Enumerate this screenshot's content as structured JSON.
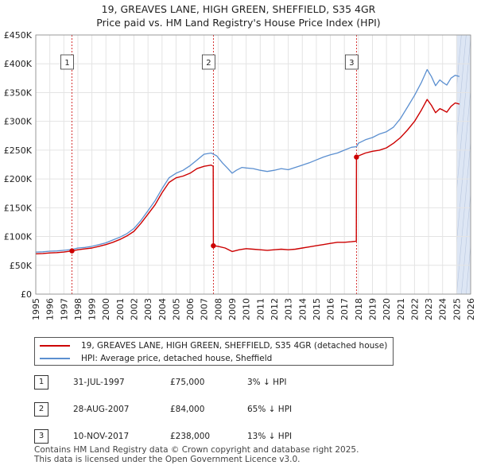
{
  "title_line1": "19, GREAVES LANE, HIGH GREEN, SHEFFIELD, S35 4GR",
  "title_line2": "Price paid vs. HM Land Registry's House Price Index (HPI)",
  "colors": {
    "property": "#cc0000",
    "hpi": "#5b8fd0",
    "marker_line": "#cc0000",
    "shade": "#dde6f4"
  },
  "chart_data": {
    "type": "line",
    "xlim": [
      1995,
      2026
    ],
    "ylim": [
      0,
      450000
    ],
    "y_ticks": [
      0,
      50000,
      100000,
      150000,
      200000,
      250000,
      300000,
      350000,
      400000,
      450000
    ],
    "y_tick_labels": [
      "£0",
      "£50K",
      "£100K",
      "£150K",
      "£200K",
      "£250K",
      "£300K",
      "£350K",
      "£400K",
      "£450K"
    ],
    "x_ticks": [
      1995,
      1996,
      1997,
      1998,
      1999,
      2000,
      2001,
      2002,
      2003,
      2004,
      2005,
      2006,
      2007,
      2008,
      2009,
      2010,
      2011,
      2012,
      2013,
      2014,
      2015,
      2016,
      2017,
      2018,
      2019,
      2020,
      2021,
      2022,
      2023,
      2024,
      2025,
      2026
    ],
    "x_tick_labels": [
      "1995",
      "1996",
      "1997",
      "1998",
      "1999",
      "2000",
      "2001",
      "2002",
      "2003",
      "2004",
      "2005",
      "2006",
      "2007",
      "2008",
      "2009",
      "2010",
      "2011",
      "2012",
      "2013",
      "2014",
      "2015",
      "2016",
      "2017",
      "2018",
      "2019",
      "2020",
      "2021",
      "2022",
      "2023",
      "2024",
      "2025",
      "2026"
    ],
    "grid": true,
    "forecast_from": 2025.0,
    "series": [
      {
        "name": "hpi",
        "x": [
          1995.0,
          1995.5,
          1996.0,
          1996.5,
          1997.0,
          1997.58,
          1998.0,
          1998.5,
          1999.0,
          1999.5,
          2000.0,
          2000.5,
          2001.0,
          2001.5,
          2002.0,
          2002.5,
          2003.0,
          2003.5,
          2004.0,
          2004.5,
          2005.0,
          2005.5,
          2006.0,
          2006.5,
          2007.0,
          2007.5,
          2007.9,
          2008.3,
          2008.7,
          2009.0,
          2009.3,
          2009.7,
          2010.0,
          2010.5,
          2011.0,
          2011.5,
          2012.0,
          2012.5,
          2013.0,
          2013.5,
          2014.0,
          2014.5,
          2015.0,
          2015.5,
          2016.0,
          2016.5,
          2017.0,
          2017.5,
          2017.86,
          2018.0,
          2018.5,
          2019.0,
          2019.5,
          2020.0,
          2020.5,
          2021.0,
          2021.5,
          2022.0,
          2022.5,
          2022.9,
          2023.2,
          2023.5,
          2023.8,
          2024.0,
          2024.3,
          2024.6,
          2024.9,
          2025.2
        ],
        "y": [
          73000,
          73500,
          74500,
          75000,
          76000,
          77500,
          80000,
          81000,
          83000,
          86000,
          89000,
          94000,
          99000,
          105000,
          114000,
          128000,
          145000,
          162000,
          183000,
          202000,
          210000,
          215000,
          223000,
          233000,
          243000,
          245000,
          240000,
          228000,
          218000,
          210000,
          215000,
          220000,
          219000,
          218000,
          215000,
          213000,
          215000,
          218000,
          216000,
          220000,
          224000,
          228000,
          233000,
          238000,
          242000,
          245000,
          250000,
          255000,
          256000,
          262000,
          268000,
          272000,
          278000,
          282000,
          290000,
          305000,
          325000,
          345000,
          368000,
          390000,
          378000,
          362000,
          372000,
          368000,
          363000,
          375000,
          380000,
          378000
        ]
      },
      {
        "name": "property",
        "x": [
          1995.0,
          1995.5,
          1996.0,
          1996.5,
          1997.0,
          1997.58,
          1998.0,
          1998.5,
          1999.0,
          1999.5,
          2000.0,
          2000.5,
          2001.0,
          2001.5,
          2002.0,
          2002.5,
          2003.0,
          2003.5,
          2004.0,
          2004.5,
          2005.0,
          2005.5,
          2006.0,
          2006.5,
          2007.0,
          2007.5,
          2007.65,
          2007.66,
          2008.0,
          2008.5,
          2009.0,
          2009.5,
          2010.0,
          2010.5,
          2011.0,
          2011.5,
          2012.0,
          2012.5,
          2013.0,
          2013.5,
          2014.0,
          2014.5,
          2015.0,
          2015.5,
          2016.0,
          2016.5,
          2017.0,
          2017.5,
          2017.85,
          2017.86,
          2018.0,
          2018.5,
          2019.0,
          2019.5,
          2020.0,
          2020.5,
          2021.0,
          2021.5,
          2022.0,
          2022.5,
          2022.9,
          2023.2,
          2023.5,
          2023.8,
          2024.0,
          2024.3,
          2024.6,
          2024.9,
          2025.2
        ],
        "y": [
          70000,
          70500,
          71500,
          72000,
          73000,
          75000,
          77000,
          78500,
          80000,
          83000,
          86000,
          90000,
          95000,
          101000,
          109000,
          123000,
          139000,
          155000,
          176000,
          194000,
          202000,
          205000,
          210000,
          218000,
          222000,
          224000,
          222000,
          84000,
          83000,
          80000,
          74000,
          77000,
          79000,
          78000,
          77000,
          76000,
          77000,
          78000,
          77000,
          78000,
          80000,
          82000,
          84000,
          86000,
          88000,
          90000,
          90000,
          91000,
          92000,
          238000,
          240000,
          245000,
          248000,
          250000,
          254000,
          262000,
          272000,
          285000,
          300000,
          320000,
          338000,
          328000,
          315000,
          322000,
          320000,
          316000,
          326000,
          332000,
          330000
        ]
      }
    ],
    "sale_points": [
      {
        "label": "1",
        "x": 1997.58,
        "y": 75000
      },
      {
        "label": "2",
        "x": 2007.66,
        "y": 84000
      },
      {
        "label": "3",
        "x": 2017.86,
        "y": 238000
      }
    ]
  },
  "legend": {
    "property_label": "19, GREAVES LANE, HIGH GREEN, SHEFFIELD, S35 4GR (detached house)",
    "hpi_label": "HPI: Average price, detached house, Sheffield"
  },
  "sales": [
    {
      "num": "1",
      "date": "31-JUL-1997",
      "price": "£75,000",
      "hpi": "3% ↓ HPI"
    },
    {
      "num": "2",
      "date": "28-AUG-2007",
      "price": "£84,000",
      "hpi": "65% ↓ HPI"
    },
    {
      "num": "3",
      "date": "10-NOV-2017",
      "price": "£238,000",
      "hpi": "13% ↓ HPI"
    }
  ],
  "footer_line1": "Contains HM Land Registry data © Crown copyright and database right 2025.",
  "footer_line2": "This data is licensed under the Open Government Licence v3.0."
}
